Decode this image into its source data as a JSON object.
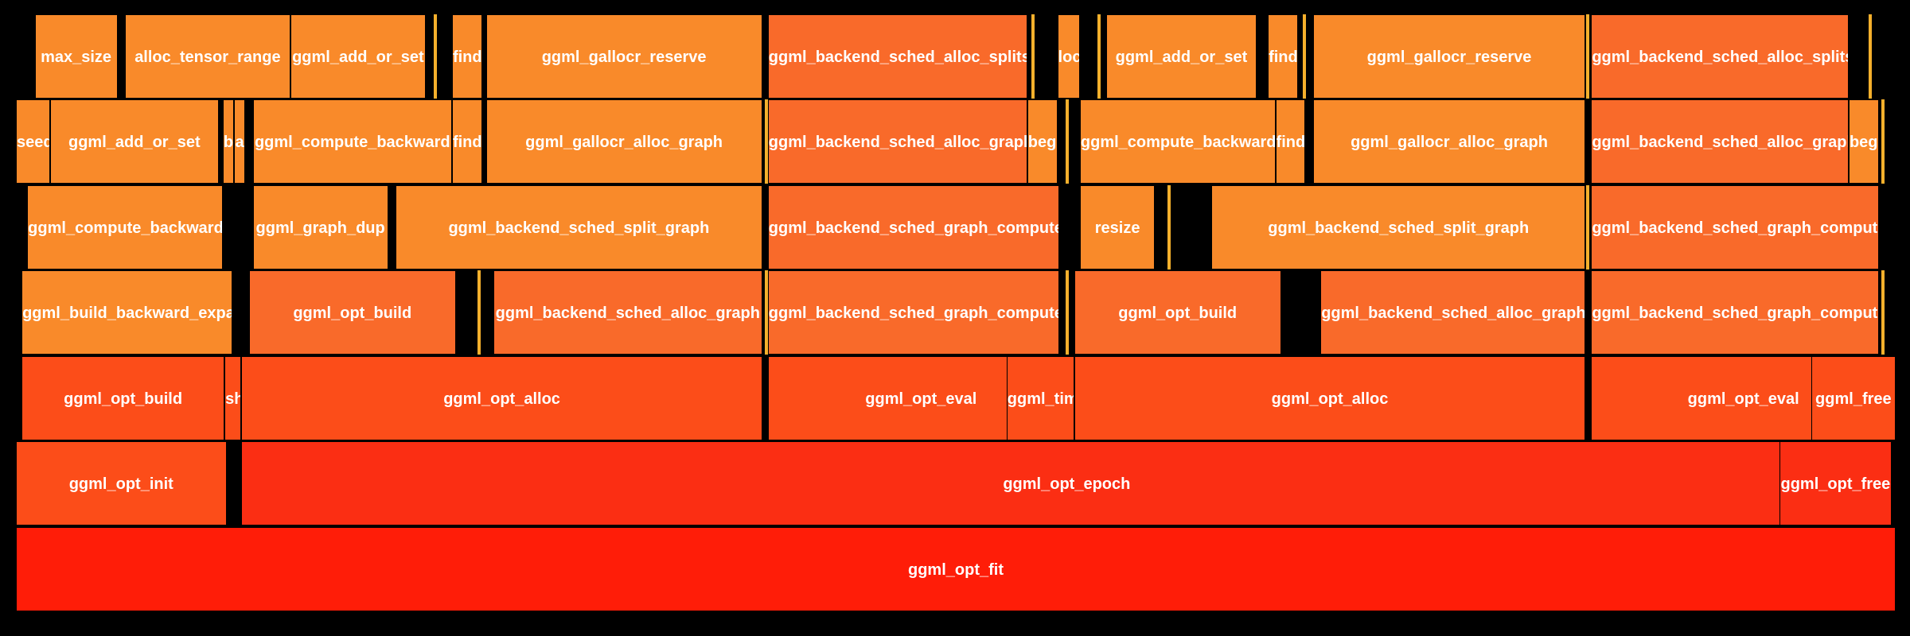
{
  "palette": {
    "root": "#ff1d08",
    "deep": "#fb2e13",
    "mid": "#fc4d19",
    "warm": "#f96a2a",
    "light": "#f98a2a",
    "pale": "#f7a02d",
    "sliver": "#f5b02c",
    "background": "#000000"
  },
  "frames": [
    {
      "name": "ggml_opt_fit",
      "depth": 0,
      "start": 0.0,
      "width": 1.0,
      "shade": "root"
    },
    {
      "name": "ggml_opt_init",
      "depth": 1,
      "start": 0.0,
      "width": 0.112,
      "shade": "mid"
    },
    {
      "name": "ggml_opt_epoch",
      "depth": 1,
      "start": 0.12,
      "width": 0.878,
      "shade": "deep"
    },
    {
      "name": "ggml_opt_free",
      "depth": 1,
      "start": 0.938,
      "width": 0.06,
      "shade": "deep"
    },
    {
      "name": "ggml_opt_build",
      "depth": 2,
      "start": 0.003,
      "width": 0.108,
      "shade": "mid"
    },
    {
      "name": "shuffle",
      "depth": 2,
      "start": 0.111,
      "width": 0.009,
      "shade": "mid"
    },
    {
      "name": "ggml_opt_alloc",
      "depth": 2,
      "start": 0.12,
      "width": 0.277,
      "shade": "mid"
    },
    {
      "name": "ggml_opt_eval",
      "depth": 2,
      "start": 0.4,
      "width": 0.163,
      "shade": "mid"
    },
    {
      "name": "ggml_time_us",
      "depth": 2,
      "start": 0.527,
      "width": 0.036,
      "shade": "mid"
    },
    {
      "name": "ggml_opt_alloc",
      "depth": 2,
      "start": 0.563,
      "width": 0.272,
      "shade": "mid"
    },
    {
      "name": "ggml_opt_eval",
      "depth": 2,
      "start": 0.838,
      "width": 0.162,
      "shade": "mid"
    },
    {
      "name": "ggml_free",
      "depth": 2,
      "start": 0.955,
      "width": 0.045,
      "shade": "mid"
    },
    {
      "name": "ggml_build_backward_expand",
      "depth": 3,
      "start": 0.003,
      "width": 0.112,
      "shade": "light"
    },
    {
      "name": "ggml_opt_build",
      "depth": 3,
      "start": 0.124,
      "width": 0.11,
      "shade": "warm"
    },
    {
      "name": "ggml_backend_sched_alloc_graph",
      "depth": 3,
      "start": 0.254,
      "width": 0.143,
      "shade": "warm"
    },
    {
      "name": "ggml_backend_sched_graph_compute",
      "depth": 3,
      "start": 0.4,
      "width": 0.155,
      "shade": "warm"
    },
    {
      "name": "ggml_opt_build",
      "depth": 3,
      "start": 0.563,
      "width": 0.11,
      "shade": "warm"
    },
    {
      "name": "ggml_backend_sched_alloc_graph",
      "depth": 3,
      "start": 0.694,
      "width": 0.141,
      "shade": "warm"
    },
    {
      "name": "ggml_backend_sched_graph_compute",
      "depth": 3,
      "start": 0.838,
      "width": 0.153,
      "shade": "warm"
    },
    {
      "name": "ggml_compute_backward",
      "depth": 4,
      "start": 0.006,
      "width": 0.104,
      "shade": "light"
    },
    {
      "name": "ggml_graph_dup",
      "depth": 4,
      "start": 0.126,
      "width": 0.072,
      "shade": "light"
    },
    {
      "name": "ggml_backend_sched_split_graph",
      "depth": 4,
      "start": 0.202,
      "width": 0.195,
      "shade": "light"
    },
    {
      "name": "ggml_backend_sched_graph_compute_async",
      "depth": 4,
      "start": 0.4,
      "width": 0.155,
      "shade": "warm"
    },
    {
      "name": "resize",
      "depth": 4,
      "start": 0.566,
      "width": 0.04,
      "shade": "light"
    },
    {
      "name": "ggml_backend_sched_split_graph",
      "depth": 4,
      "start": 0.636,
      "width": 0.199,
      "shade": "light"
    },
    {
      "name": "ggml_backend_sched_graph_compute_async",
      "depth": 4,
      "start": 0.838,
      "width": 0.153,
      "shade": "warm"
    },
    {
      "name": "seed",
      "depth": 5,
      "start": 0.0,
      "width": 0.018,
      "shade": "light"
    },
    {
      "name": "ggml_add_or_set",
      "depth": 5,
      "start": 0.018,
      "width": 0.09,
      "shade": "light"
    },
    {
      "name": "b",
      "depth": 5,
      "start": 0.11,
      "width": 0.006,
      "shade": "light"
    },
    {
      "name": "a",
      "depth": 5,
      "start": 0.116,
      "width": 0.006,
      "shade": "light"
    },
    {
      "name": "ggml_compute_backward",
      "depth": 5,
      "start": 0.126,
      "width": 0.106,
      "shade": "light"
    },
    {
      "name": "find",
      "depth": 5,
      "start": 0.232,
      "width": 0.016,
      "shade": "light"
    },
    {
      "name": "ggml_gallocr_alloc_graph",
      "depth": 5,
      "start": 0.25,
      "width": 0.147,
      "shade": "light"
    },
    {
      "name": "ggml_backend_sched_alloc_graph",
      "depth": 5,
      "start": 0.4,
      "width": 0.138,
      "shade": "warm"
    },
    {
      "name": "begin",
      "depth": 5,
      "start": 0.538,
      "width": 0.016,
      "shade": "light"
    },
    {
      "name": "ggml_compute_backward",
      "depth": 5,
      "start": 0.566,
      "width": 0.104,
      "shade": "light"
    },
    {
      "name": "find",
      "depth": 5,
      "start": 0.67,
      "width": 0.016,
      "shade": "light"
    },
    {
      "name": "ggml_gallocr_alloc_graph",
      "depth": 5,
      "start": 0.69,
      "width": 0.145,
      "shade": "light"
    },
    {
      "name": "ggml_backend_sched_alloc_graph",
      "depth": 5,
      "start": 0.838,
      "width": 0.137,
      "shade": "warm"
    },
    {
      "name": "begin",
      "depth": 5,
      "start": 0.975,
      "width": 0.016,
      "shade": "light"
    },
    {
      "name": "max_size",
      "depth": 6,
      "start": 0.01,
      "width": 0.044,
      "shade": "light"
    },
    {
      "name": "alloc_tensor_range",
      "depth": 6,
      "start": 0.058,
      "width": 0.088,
      "shade": "light"
    },
    {
      "name": "ggml_add_or_set",
      "depth": 6,
      "start": 0.146,
      "width": 0.072,
      "shade": "light"
    },
    {
      "name": "find",
      "depth": 6,
      "start": 0.232,
      "width": 0.016,
      "shade": "light"
    },
    {
      "name": "ggml_gallocr_reserve",
      "depth": 6,
      "start": 0.25,
      "width": 0.147,
      "shade": "light"
    },
    {
      "name": "ggml_backend_sched_alloc_splits",
      "depth": 6,
      "start": 0.4,
      "width": 0.138,
      "shade": "warm"
    },
    {
      "name": "lock",
      "depth": 6,
      "start": 0.554,
      "width": 0.012,
      "shade": "light"
    },
    {
      "name": "ggml_add_or_set",
      "depth": 6,
      "start": 0.58,
      "width": 0.08,
      "shade": "light"
    },
    {
      "name": "find",
      "depth": 6,
      "start": 0.666,
      "width": 0.016,
      "shade": "light"
    },
    {
      "name": "ggml_gallocr_reserve",
      "depth": 6,
      "start": 0.69,
      "width": 0.145,
      "shade": "light"
    },
    {
      "name": "ggml_backend_sched_alloc_splits",
      "depth": 6,
      "start": 0.838,
      "width": 0.137,
      "shade": "warm"
    }
  ]
}
